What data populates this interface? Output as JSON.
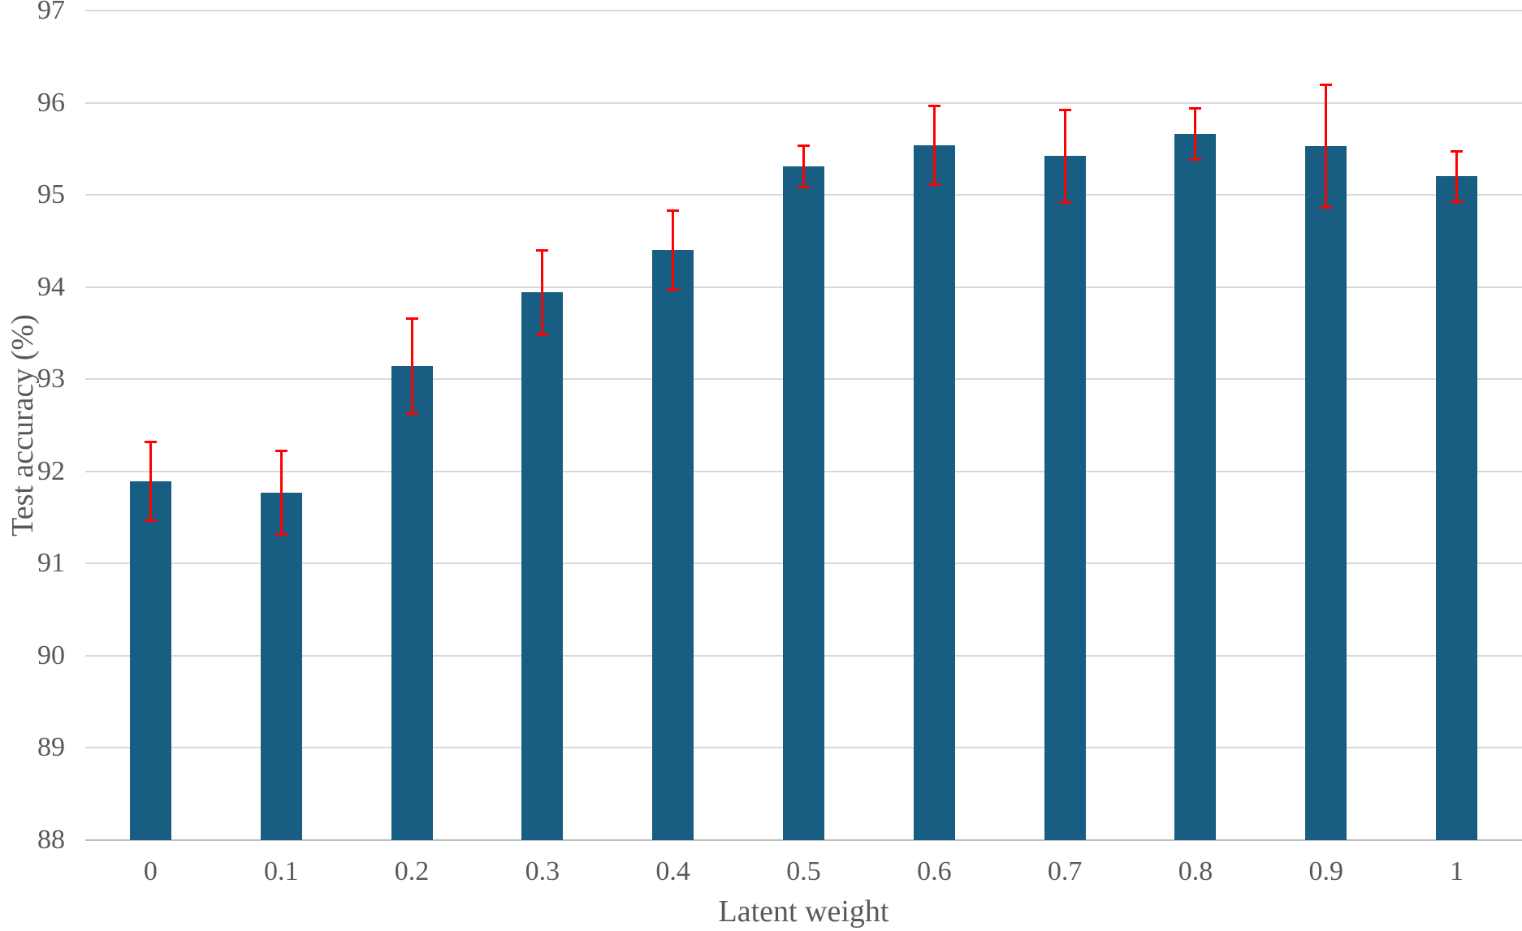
{
  "chart_data": {
    "type": "bar",
    "title": "",
    "xlabel": "Latent weight",
    "ylabel": "Test accuracy (%)",
    "categories": [
      "0",
      "0.1",
      "0.2",
      "0.3",
      "0.4",
      "0.5",
      "0.6",
      "0.7",
      "0.8",
      "0.9",
      "1"
    ],
    "values": [
      91.89,
      91.77,
      93.14,
      93.94,
      94.4,
      95.31,
      95.54,
      95.42,
      95.66,
      95.53,
      95.2
    ],
    "errors": [
      0.43,
      0.46,
      0.52,
      0.46,
      0.43,
      0.23,
      0.43,
      0.51,
      0.28,
      0.67,
      0.28
    ],
    "ylim": [
      88,
      97
    ],
    "yticks": [
      88,
      89,
      90,
      91,
      92,
      93,
      94,
      95,
      96,
      97
    ],
    "grid": true,
    "legend_position": "none",
    "colors": {
      "bar": "#175e82",
      "error_bar": "#fe0000",
      "gridline": "#d9d9d9",
      "axis_line": "#bfbfbf",
      "text": "#595959",
      "background": "#ffffff"
    }
  }
}
